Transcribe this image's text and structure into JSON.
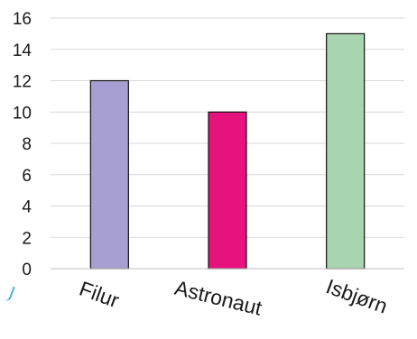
{
  "chart_data": {
    "type": "bar",
    "categories": [
      "Filur",
      "Astronaut",
      "Isbjørn"
    ],
    "values": [
      12,
      10,
      15
    ],
    "colors": [
      "#a79fd1",
      "#e6127d",
      "#a8d5b0"
    ],
    "ylim": [
      0,
      16
    ],
    "yticks": [
      "0",
      "2",
      "4",
      "6",
      "8",
      "10",
      "12",
      "14",
      "16"
    ],
    "grid": true,
    "legend": "none",
    "title": "",
    "xlabel": "",
    "ylabel": ""
  }
}
